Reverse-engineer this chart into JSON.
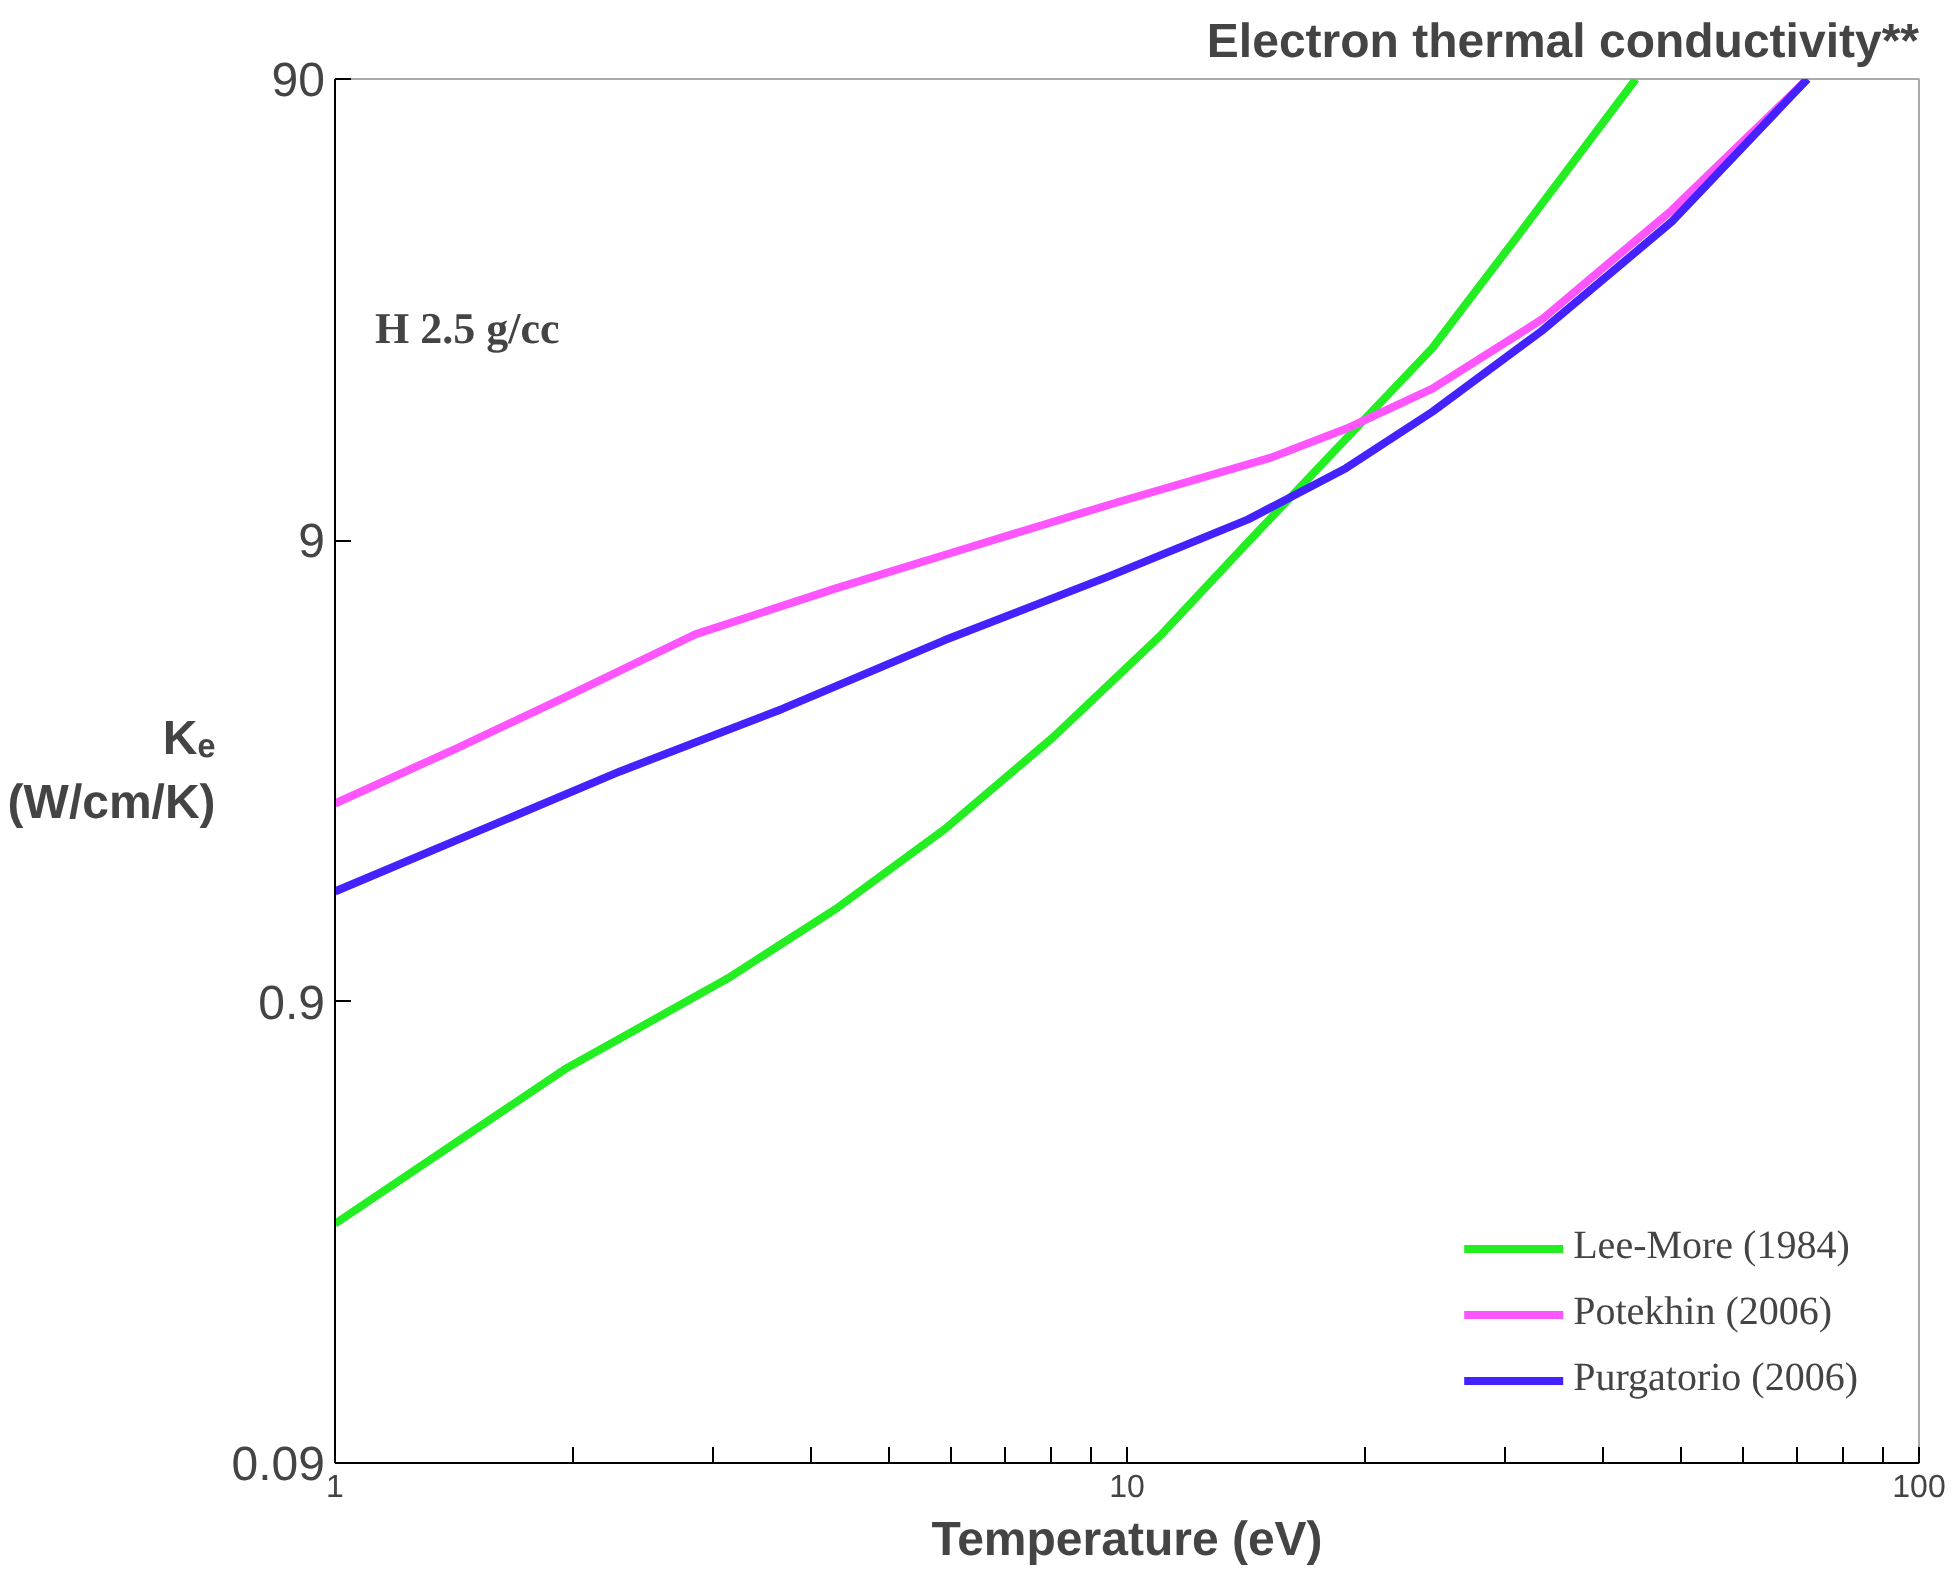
{
  "chart_data": {
    "type": "line",
    "title": "Electron thermal conductivity**",
    "xlabel": "Temperature (eV)",
    "ylabel": "Kₑ (W/cm/K)",
    "annotations": [
      "H  2.5 g/cc"
    ],
    "log": "xy",
    "xlim": [
      1,
      100
    ],
    "ylim": [
      0.09,
      90
    ],
    "xticks": [
      1,
      {
        "value": 2,
        "label": null
      },
      {
        "value": 3,
        "label": null
      },
      {
        "value": 4,
        "label": null
      },
      {
        "value": 5,
        "label": null
      },
      {
        "value": 6,
        "label": null
      },
      {
        "value": 7,
        "label": null
      },
      {
        "value": 8,
        "label": null
      },
      {
        "value": 9,
        "label": null
      },
      10,
      {
        "value": 20,
        "label": null
      },
      {
        "value": 30,
        "label": null
      },
      {
        "value": 40,
        "label": null
      },
      {
        "value": 50,
        "label": null
      },
      {
        "value": 60,
        "label": null
      },
      {
        "value": 70,
        "label": null
      },
      {
        "value": 80,
        "label": null
      },
      {
        "value": 90,
        "label": null
      },
      100
    ],
    "yticks": [
      0.09,
      0.9,
      9,
      90
    ],
    "grid": false,
    "legend": "bottom right",
    "line_style": "solid",
    "series": [
      {
        "name": "Lee-More (1984)",
        "color": "#22ee22",
        "x": [
          1,
          1.95,
          3.13,
          4.29,
          5.89,
          8.07,
          11.06,
          14.2,
          18.3,
          24.3,
          31.3,
          43.9
        ],
        "values": [
          0.297,
          0.642,
          1.01,
          1.43,
          2.13,
          3.37,
          5.63,
          8.9,
          14.1,
          23.5,
          41.6,
          90
        ]
      },
      {
        "name": "Potekhin (2006)",
        "color": "#ff55ff",
        "x": [
          1,
          1.42,
          1.95,
          2.85,
          4.29,
          6.27,
          9.75,
          15.2,
          18.9,
          24.3,
          33.4,
          48.7,
          72.3
        ],
        "values": [
          2.42,
          3.18,
          4.11,
          5.63,
          7.08,
          8.65,
          10.9,
          13.6,
          15.7,
          19.2,
          27.1,
          46.7,
          90
        ]
      },
      {
        "name": "Purgatorio (2006)",
        "color": "#4422ff",
        "x": [
          1,
          1.42,
          2.29,
          3.67,
          5.89,
          9.45,
          14.2,
          18.9,
          24.3,
          33.4,
          48.7,
          72.3
        ],
        "values": [
          1.56,
          2.01,
          2.84,
          3.88,
          5.47,
          7.5,
          9.98,
          12.9,
          17.1,
          25.6,
          44.1,
          90
        ]
      }
    ]
  }
}
